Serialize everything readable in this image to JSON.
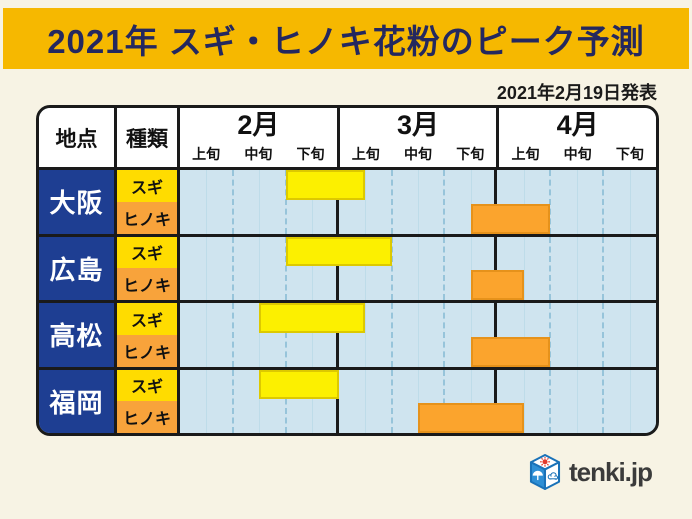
{
  "title": {
    "text": "2021年 スギ・ヒノキ花粉のピーク予測"
  },
  "announcement": "2021年2月19日発表",
  "logo": {
    "text": "tenki.jp"
  },
  "table": {
    "corner_headers": [
      "地点",
      "種類"
    ],
    "months": [
      {
        "label": "2月",
        "periods": [
          "上旬",
          "中旬",
          "下旬"
        ]
      },
      {
        "label": "3月",
        "periods": [
          "上旬",
          "中旬",
          "下旬"
        ]
      },
      {
        "label": "4月",
        "periods": [
          "上旬",
          "中旬",
          "下旬"
        ]
      }
    ],
    "rows": [
      {
        "city": "大阪",
        "series": [
          {
            "type": "スギ",
            "start": 2.0,
            "end": 3.5
          },
          {
            "type": "ヒノキ",
            "start": 5.5,
            "end": 7.0
          }
        ]
      },
      {
        "city": "広島",
        "series": [
          {
            "type": "スギ",
            "start": 2.0,
            "end": 4.0
          },
          {
            "type": "ヒノキ",
            "start": 5.5,
            "end": 6.5
          }
        ]
      },
      {
        "city": "高松",
        "series": [
          {
            "type": "スギ",
            "start": 1.5,
            "end": 3.5
          },
          {
            "type": "ヒノキ",
            "start": 5.5,
            "end": 7.0
          }
        ]
      },
      {
        "city": "福岡",
        "series": [
          {
            "type": "スギ",
            "start": 1.5,
            "end": 3.0
          },
          {
            "type": "ヒノキ",
            "start": 4.5,
            "end": 6.5
          }
        ]
      }
    ]
  },
  "colors": {
    "page_bg": "#f7f3e4",
    "title_bg": "#f6b800",
    "title_text": "#24285f",
    "city_cell": "#1e3e92",
    "sugi_cell": "#ffdc00",
    "hinoki_cell": "#f8a33b",
    "sugi_bar": "#fcf000",
    "hinoki_bar": "#fba42d",
    "chart_bg": "#cfe4ef",
    "border": "#1a1a1a"
  },
  "chart_data": {
    "type": "gantt",
    "title": "2021年 スギ・ヒノキ花粉のピーク予測",
    "announced": "2021年2月19日発表",
    "x_axis": {
      "months": [
        "2月",
        "3月",
        "4月"
      ],
      "periods_per_month": [
        "上旬",
        "中旬",
        "下旬"
      ],
      "unit": "1 unit = 1旬 (10 days)",
      "range": [
        0,
        9
      ],
      "note": "0 = start of 2月上旬, 9 = end of 4月下旬; gridlines dashed at 旬 boundaries, faint solid at mid-旬"
    },
    "categories": [
      "大阪 スギ",
      "大阪 ヒノキ",
      "広島 スギ",
      "広島 ヒノキ",
      "高松 スギ",
      "高松 ヒノキ",
      "福岡 スギ",
      "福岡 ヒノキ"
    ],
    "bars": [
      {
        "city": "大阪",
        "type": "スギ",
        "start": 2.0,
        "end": 3.5
      },
      {
        "city": "大阪",
        "type": "ヒノキ",
        "start": 5.5,
        "end": 7.0
      },
      {
        "city": "広島",
        "type": "スギ",
        "start": 2.0,
        "end": 4.0
      },
      {
        "city": "広島",
        "type": "ヒノキ",
        "start": 5.5,
        "end": 6.5
      },
      {
        "city": "高松",
        "type": "スギ",
        "start": 1.5,
        "end": 3.5
      },
      {
        "city": "高松",
        "type": "ヒノキ",
        "start": 5.5,
        "end": 7.0
      },
      {
        "city": "福岡",
        "type": "スギ",
        "start": 1.5,
        "end": 3.0
      },
      {
        "city": "福岡",
        "type": "ヒノキ",
        "start": 4.5,
        "end": 6.5
      }
    ],
    "legend": {
      "スギ": "#fcf000",
      "ヒノキ": "#fba42d"
    }
  }
}
